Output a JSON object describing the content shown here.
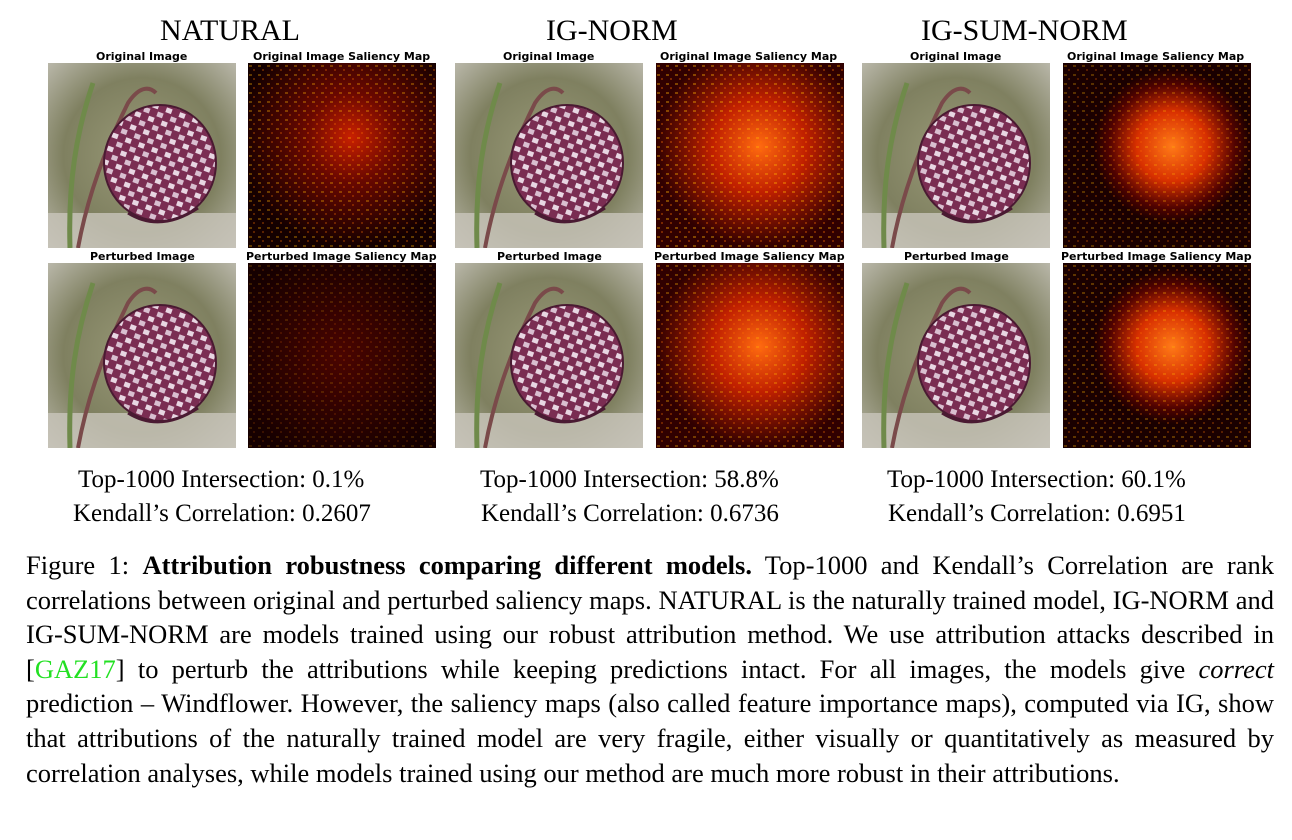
{
  "panels": [
    {
      "title": "NATURAL",
      "original_label": "Original Image",
      "original_map_label": "Original Image Saliency Map",
      "perturbed_label": "Perturbed Image",
      "perturbed_map_label": "Perturbed Image Saliency Map",
      "top1000": "Top-1000 Intersection: 0.1%",
      "kendall": "Kendall’s Correlation: 0.2607"
    },
    {
      "title": "IG-NORM",
      "original_label": "Original Image",
      "original_map_label": "Original Image Saliency Map",
      "perturbed_label": "Perturbed Image",
      "perturbed_map_label": "Perturbed Image Saliency Map",
      "top1000": "Top-1000 Intersection: 58.8%",
      "kendall": "Kendall’s Correlation: 0.6736"
    },
    {
      "title": "IG-SUM-NORM",
      "original_label": "Original Image",
      "original_map_label": "Original Image Saliency Map",
      "perturbed_label": "Perturbed Image",
      "perturbed_map_label": "Perturbed Image Saliency Map",
      "top1000": "Top-1000 Intersection: 60.1%",
      "kendall": "Kendall’s Correlation: 0.6951"
    }
  ],
  "caption": {
    "prefix": "Figure 1: ",
    "bold": "Attribution robustness comparing different models.",
    "part1": " Top-1000 and Kendall’s Correlation are rank correlations between original and perturbed saliency maps. NATURAL is the naturally trained model, IG-NORM and IG-SUM-NORM are models trained using our robust attribution method. We use attribution attacks described in [",
    "citation": "GAZ17",
    "part2": "] to perturb the attributions while keeping predictions intact. For all images, the models give ",
    "italic": "correct",
    "part3": " prediction – Windflower. However, the saliency maps (also called feature importance maps), computed via IG, show that attributions of the naturally trained model are very fragile, either visually or quantitatively as measured by correlation analyses, while models trained using our method are much more robust in their attributions."
  },
  "colors": {
    "citation": "#22e022",
    "saliency_dark": "#1a0000",
    "saliency_hot": "#ff5a00",
    "petal": "#8a3a5e"
  }
}
